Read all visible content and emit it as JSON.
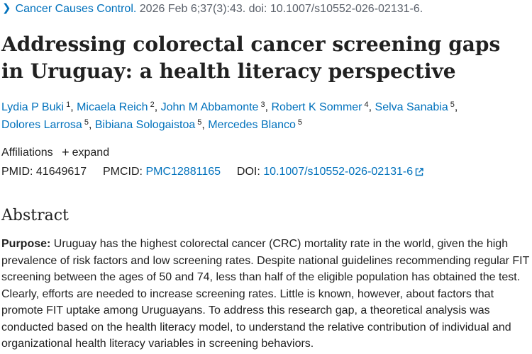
{
  "citation": {
    "journal": "Cancer Causes Control.",
    "details": " 2026 Feb 6;37(3):43. doi: 10.1007/s10552-026-02131-6."
  },
  "title": "Addressing colorectal cancer screening gaps in Uruguay: a health literacy perspective",
  "authors": [
    {
      "name": "Lydia P Buki",
      "aff": "1"
    },
    {
      "name": "Micaela Reich",
      "aff": "2"
    },
    {
      "name": "John M Abbamonte",
      "aff": "3"
    },
    {
      "name": "Robert K Sommer",
      "aff": "4"
    },
    {
      "name": "Selva Sanabia",
      "aff": "5"
    },
    {
      "name": "Dolores Larrosa",
      "aff": "5"
    },
    {
      "name": "Bibiana Sologaistoa",
      "aff": "5"
    },
    {
      "name": "Mercedes Blanco",
      "aff": "5"
    }
  ],
  "affiliations": {
    "label": "Affiliations",
    "expand_label": "expand"
  },
  "ids": {
    "pmid_label": "PMID:",
    "pmid": "41649617",
    "pmcid_label": "PMCID:",
    "pmcid": "PMC12881165",
    "doi_label": "DOI:",
    "doi": "10.1007/s10552-026-02131-6"
  },
  "abstract": {
    "heading": "Abstract",
    "purpose_label": "Purpose:",
    "purpose_text": " Uruguay has the highest colorectal cancer (CRC) mortality rate in the world, given the high prevalence of risk factors and low screening rates. Despite national guidelines recommending regular FIT screening between the ages of 50 and 74, less than half of the eligible population has obtained the test. Clearly, efforts are needed to increase screening rates. Little is known, however, about factors that promote FIT uptake among Uruguayans. To address this research gap, a theoretical analysis was conducted based on the health literacy model, to understand the relative contribution of individual and organizational health literacy variables in screening behaviors."
  },
  "colors": {
    "link": "#0071bc",
    "text": "#212121",
    "muted": "#5b616b"
  },
  "icons": {
    "chevron": "chevron-right-icon",
    "expand": "plus-icon",
    "external": "external-link-icon"
  }
}
